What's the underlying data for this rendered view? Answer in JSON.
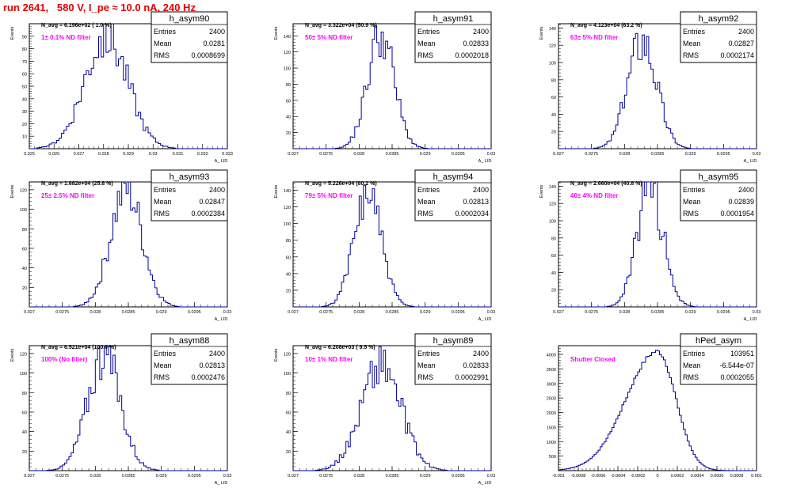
{
  "page_title": "run 2641,   580 V, I_pe ≈ 10.0 nA, 240 Hz",
  "colors": {
    "title": "#e00000",
    "annotation": "#ff00ff",
    "histogram": "#000099",
    "frame": "#000000"
  },
  "chart_data": [
    {
      "type": "bar",
      "name": "h_asym90",
      "navg_label": "N_avg = 6.196e+02 ( 1.0 %)",
      "filter_label": "1± 0.1% ND filter",
      "stats": [
        {
          "label": "Entries",
          "value": "2400"
        },
        {
          "label": "Mean",
          "value": "0.0281"
        },
        {
          "label": "RMS",
          "value": "0.0008699"
        }
      ],
      "ylabel": "Events",
      "xlabel": "A_ LID",
      "xlim": [
        0.025,
        0.033
      ],
      "ylim": [
        0,
        100
      ],
      "xticks": [
        0.025,
        0.026,
        0.027,
        0.028,
        0.029,
        0.03,
        0.031,
        0.032,
        0.033
      ],
      "xtick_labels": [
        "0.025",
        "0.026",
        "0.027",
        "0.028",
        "0.029",
        "0.03",
        "0.031",
        "0.032",
        "0.033"
      ],
      "yticks": [
        10,
        20,
        30,
        40,
        50,
        60,
        70,
        80,
        90
      ],
      "mean": 0.0281,
      "rms": 0.0008699,
      "peak": 90,
      "bin_width": 0.0001,
      "seed": 90
    },
    {
      "type": "bar",
      "name": "h_asym91",
      "navg_label": "N_avg = 3.322e+04 (50.9 %)",
      "filter_label": "50± 5% ND filter",
      "stats": [
        {
          "label": "Entries",
          "value": "2400"
        },
        {
          "label": "Mean",
          "value": "0.02833"
        },
        {
          "label": "RMS",
          "value": "0.0002018"
        }
      ],
      "ylabel": "Events",
      "xlabel": "A_ LID",
      "xlim": [
        0.027,
        0.03
      ],
      "ylim": [
        0,
        155
      ],
      "xticks": [
        0.027,
        0.0275,
        0.028,
        0.0285,
        0.029,
        0.0295,
        0.03
      ],
      "xtick_labels": [
        "0.027",
        "0.0275",
        "0.028",
        "0.0285",
        "0.029",
        "0.0295",
        "0.03"
      ],
      "yticks": [
        20,
        40,
        60,
        80,
        100,
        120,
        140
      ],
      "mean": 0.02833,
      "rms": 0.0002018,
      "peak": 142,
      "bin_width": 3.33e-05,
      "seed": 91
    },
    {
      "type": "bar",
      "name": "h_asym92",
      "navg_label": "N_avg = 4.123e+04 (63.2 %)",
      "filter_label": "63± 5% ND filter",
      "stats": [
        {
          "label": "Entries",
          "value": "2400"
        },
        {
          "label": "Mean",
          "value": "0.02827"
        },
        {
          "label": "RMS",
          "value": "0.0002174"
        }
      ],
      "ylabel": "Events",
      "xlabel": "A_ LID",
      "xlim": [
        0.027,
        0.03
      ],
      "ylim": [
        0,
        145
      ],
      "xticks": [
        0.027,
        0.0275,
        0.028,
        0.0285,
        0.029,
        0.0295,
        0.03
      ],
      "xtick_labels": [
        "0.027",
        "0.0275",
        "0.028",
        "0.0285",
        "0.029",
        "0.0295",
        "0.03"
      ],
      "yticks": [
        20,
        40,
        60,
        80,
        100,
        120,
        140
      ],
      "mean": 0.02827,
      "rms": 0.0002174,
      "peak": 130,
      "bin_width": 3.33e-05,
      "seed": 92
    },
    {
      "type": "bar",
      "name": "h_asym93",
      "navg_label": "N_avg = 1.682e+04 (25.8 %)",
      "filter_label": "25± 2.5% ND filter",
      "stats": [
        {
          "label": "Entries",
          "value": "2400"
        },
        {
          "label": "Mean",
          "value": "0.02847"
        },
        {
          "label": "RMS",
          "value": "0.0002384"
        }
      ],
      "ylabel": "Events",
      "xlabel": "A_ LID",
      "xlim": [
        0.027,
        0.03
      ],
      "ylim": [
        0,
        128
      ],
      "xticks": [
        0.027,
        0.0275,
        0.028,
        0.0285,
        0.029,
        0.0295,
        0.03
      ],
      "xtick_labels": [
        "0.027",
        "0.0275",
        "0.028",
        "0.0285",
        "0.029",
        "0.0295",
        "0.03"
      ],
      "yticks": [
        20,
        40,
        60,
        80,
        100,
        120
      ],
      "mean": 0.02847,
      "rms": 0.0002384,
      "peak": 120,
      "bin_width": 3.33e-05,
      "seed": 93
    },
    {
      "type": "bar",
      "name": "h_asym94",
      "navg_label": "N_avg = 5.226e+04 (80.2 %)",
      "filter_label": "79± 5% ND filter",
      "stats": [
        {
          "label": "Entries",
          "value": "2400"
        },
        {
          "label": "Mean",
          "value": "0.02813"
        },
        {
          "label": "RMS",
          "value": "0.0002034"
        }
      ],
      "ylabel": "Events",
      "xlabel": "A_ LID",
      "xlim": [
        0.027,
        0.03
      ],
      "ylim": [
        0,
        150
      ],
      "xticks": [
        0.027,
        0.0275,
        0.028,
        0.0285,
        0.029,
        0.0295,
        0.03
      ],
      "xtick_labels": [
        "0.027",
        "0.0275",
        "0.028",
        "0.0285",
        "0.029",
        "0.0295",
        "0.03"
      ],
      "yticks": [
        20,
        40,
        60,
        80,
        100,
        120,
        140
      ],
      "mean": 0.02813,
      "rms": 0.0002034,
      "peak": 140,
      "bin_width": 3.33e-05,
      "seed": 94
    },
    {
      "type": "bar",
      "name": "h_asym95",
      "navg_label": "N_avg = 2.660e+04 (40.8 %)",
      "filter_label": "40± 4% ND filter",
      "stats": [
        {
          "label": "Entries",
          "value": "2400"
        },
        {
          "label": "Mean",
          "value": "0.02839"
        },
        {
          "label": "RMS",
          "value": "0.0001954"
        }
      ],
      "ylabel": "Events",
      "xlabel": "A_ LID",
      "xlim": [
        0.027,
        0.03
      ],
      "ylim": [
        0,
        145
      ],
      "xticks": [
        0.027,
        0.0275,
        0.028,
        0.0285,
        0.029,
        0.0295,
        0.03
      ],
      "xtick_labels": [
        "0.027",
        "0.0275",
        "0.028",
        "0.0285",
        "0.029",
        "0.0295",
        "0.03"
      ],
      "yticks": [
        20,
        40,
        60,
        80,
        100,
        120,
        140
      ],
      "mean": 0.02839,
      "rms": 0.0001954,
      "peak": 140,
      "bin_width": 3.33e-05,
      "seed": 95
    },
    {
      "type": "bar",
      "name": "h_asym88",
      "navg_label": "N_avg = 6.521e+04 (100.0 %)",
      "filter_label": "100% (No filter)",
      "stats": [
        {
          "label": "Entries",
          "value": "2400"
        },
        {
          "label": "Mean",
          "value": "0.02813"
        },
        {
          "label": "RMS",
          "value": "0.0002476"
        }
      ],
      "ylabel": "Events",
      "xlabel": "A_ LID",
      "xlim": [
        0.027,
        0.03
      ],
      "ylim": [
        0,
        128
      ],
      "xticks": [
        0.027,
        0.0275,
        0.028,
        0.0285,
        0.029,
        0.0295,
        0.03
      ],
      "xtick_labels": [
        "0.027",
        "0.0275",
        "0.028",
        "0.0285",
        "0.029",
        "0.0295",
        "0.03"
      ],
      "yticks": [
        20,
        40,
        60,
        80,
        100,
        120
      ],
      "mean": 0.02813,
      "rms": 0.0002476,
      "peak": 120,
      "bin_width": 3.33e-05,
      "seed": 88
    },
    {
      "type": "bar",
      "name": "h_asym89",
      "navg_label": "N_avg = 6.208e+03 ( 9.5 %)",
      "filter_label": "10± 1% ND filter",
      "stats": [
        {
          "label": "Entries",
          "value": "2400"
        },
        {
          "label": "Mean",
          "value": "0.02833"
        },
        {
          "label": "RMS",
          "value": "0.0002991"
        }
      ],
      "ylabel": "Events",
      "xlabel": "A_ LID",
      "xlim": [
        0.027,
        0.03
      ],
      "ylim": [
        0,
        128
      ],
      "xticks": [
        0.027,
        0.0275,
        0.028,
        0.0285,
        0.029,
        0.0295,
        0.03
      ],
      "xtick_labels": [
        "0.027",
        "0.0275",
        "0.028",
        "0.0285",
        "0.029",
        "0.0295",
        "0.03"
      ],
      "yticks": [
        20,
        40,
        60,
        80,
        100,
        120
      ],
      "mean": 0.02833,
      "rms": 0.0002991,
      "peak": 110,
      "bin_width": 3.33e-05,
      "seed": 89
    },
    {
      "type": "bar",
      "name": "hPed_asym",
      "navg_label": "",
      "filter_label": "Shutter Closed",
      "stats": [
        {
          "label": "Entries",
          "value": "103951"
        },
        {
          "label": "Mean",
          "value": "-6.544e-07"
        },
        {
          "label": "RMS",
          "value": "0.0002055"
        }
      ],
      "ylabel": "",
      "xlabel": "",
      "xlim": [
        -0.001,
        0.001
      ],
      "ylim": [
        0,
        4300
      ],
      "xticks": [
        -0.001,
        -0.0008,
        -0.0006,
        -0.0004,
        -0.0002,
        0,
        0.0002,
        0.0004,
        0.0006,
        0.0008,
        0.001
      ],
      "xtick_labels": [
        "-0.001",
        "-0.0008",
        "-0.0006",
        "-0.0004",
        "-0.0002",
        "0",
        "0.0002",
        "0.0004",
        "0.0006",
        "0.0008",
        "0.001"
      ],
      "yticks": [
        500,
        1000,
        1500,
        2000,
        2500,
        3000,
        3500,
        4000
      ],
      "mean": 0.0,
      "rms": 0.0002055,
      "peak": 4100,
      "skew": -0.35,
      "bin_width": 2e-05,
      "seed": 7
    }
  ]
}
